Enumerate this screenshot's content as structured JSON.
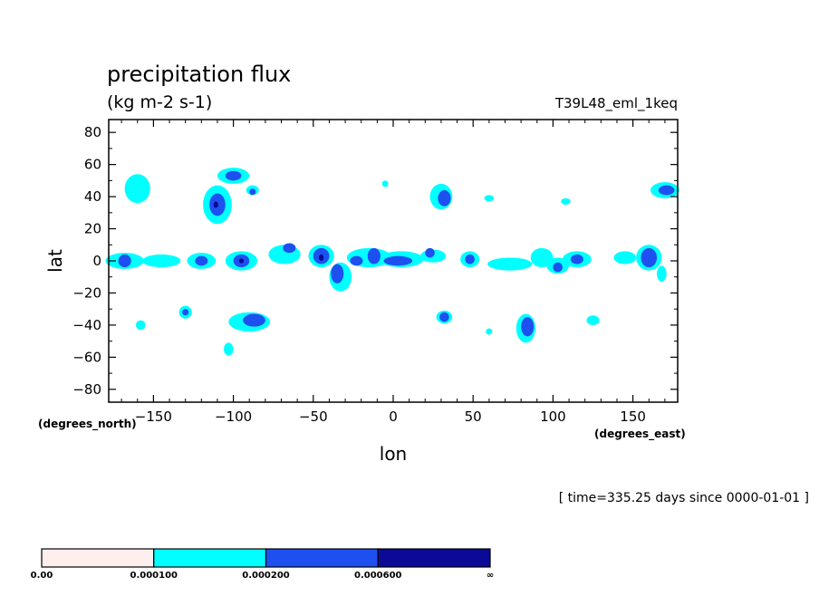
{
  "chart_data": {
    "type": "contour_map",
    "title": "precipitation flux",
    "units": "(kg m-2 s-1)",
    "run_label": "T39L48_eml_1keq",
    "time_label": "[ time=335.25 days since 0000-01-01 ]",
    "xlabel": "lon",
    "ylabel": "lat",
    "x_unit_label": "(degrees_east)",
    "y_unit_label": "(degrees_north)",
    "xlim": [
      -178,
      178
    ],
    "ylim": [
      -88,
      88
    ],
    "x_ticks": [
      -150,
      -100,
      -50,
      0,
      50,
      100,
      150
    ],
    "y_ticks": [
      80,
      60,
      40,
      20,
      0,
      -20,
      -40,
      -60,
      -80
    ],
    "x_tick_labels": [
      "−150",
      "−100",
      "−50",
      "0",
      "50",
      "100",
      "150"
    ],
    "y_tick_labels": [
      "80",
      "60",
      "40",
      "20",
      "0",
      "−20",
      "−40",
      "−60",
      "−80"
    ],
    "levels": [
      0.0,
      0.0001,
      0.0002,
      0.0006
    ],
    "colorbar": {
      "labels": [
        "0.00",
        "0.000100",
        "0.000200",
        "0.000600",
        "∞"
      ],
      "colors": [
        "#ffeeee",
        "#00ffff",
        "#1e50f0",
        "#0a0a96"
      ]
    },
    "regions": [
      {
        "level": 1,
        "lon": -160,
        "lat": 45,
        "dlon": 8,
        "dlat": 9
      },
      {
        "level": 1,
        "lon": -110,
        "lat": 35,
        "dlon": 9,
        "dlat": 12
      },
      {
        "level": 2,
        "lon": -110,
        "lat": 35,
        "dlon": 5,
        "dlat": 7
      },
      {
        "level": 3,
        "lon": -111,
        "lat": 35,
        "dlon": 1.5,
        "dlat": 2
      },
      {
        "level": 1,
        "lon": -100,
        "lat": 53,
        "dlon": 10,
        "dlat": 5
      },
      {
        "level": 2,
        "lon": -100,
        "lat": 53,
        "dlon": 5,
        "dlat": 3
      },
      {
        "level": 1,
        "lon": -88,
        "lat": 44,
        "dlon": 4,
        "dlat": 3
      },
      {
        "level": 2,
        "lon": -88,
        "lat": 43,
        "dlon": 2,
        "dlat": 2
      },
      {
        "level": 1,
        "lon": -168,
        "lat": 0,
        "dlon": 12,
        "dlat": 5
      },
      {
        "level": 2,
        "lon": -168,
        "lat": 0,
        "dlon": 4,
        "dlat": 4
      },
      {
        "level": 1,
        "lon": -145,
        "lat": 0,
        "dlon": 12,
        "dlat": 4
      },
      {
        "level": 1,
        "lon": -120,
        "lat": 0,
        "dlon": 9,
        "dlat": 5
      },
      {
        "level": 2,
        "lon": -120,
        "lat": 0,
        "dlon": 4,
        "dlat": 3
      },
      {
        "level": 1,
        "lon": -95,
        "lat": 0,
        "dlon": 10,
        "dlat": 6
      },
      {
        "level": 2,
        "lon": -95,
        "lat": 0,
        "dlon": 5,
        "dlat": 4
      },
      {
        "level": 3,
        "lon": -95,
        "lat": 0,
        "dlon": 1.5,
        "dlat": 1.5
      },
      {
        "level": 1,
        "lon": -68,
        "lat": 4,
        "dlon": 10,
        "dlat": 6
      },
      {
        "level": 2,
        "lon": -65,
        "lat": 8,
        "dlon": 4,
        "dlat": 3
      },
      {
        "level": 1,
        "lon": -45,
        "lat": 3,
        "dlon": 8,
        "dlat": 7
      },
      {
        "level": 2,
        "lon": -45,
        "lat": 3,
        "dlon": 5,
        "dlat": 5
      },
      {
        "level": 3,
        "lon": -45,
        "lat": 2,
        "dlon": 1.5,
        "dlat": 2
      },
      {
        "level": 1,
        "lon": -33,
        "lat": -10,
        "dlon": 7,
        "dlat": 9
      },
      {
        "level": 2,
        "lon": -35,
        "lat": -8,
        "dlon": 4,
        "dlat": 6
      },
      {
        "level": 1,
        "lon": -15,
        "lat": 2,
        "dlon": 14,
        "dlat": 6
      },
      {
        "level": 2,
        "lon": -23,
        "lat": 0,
        "dlon": 4,
        "dlat": 3
      },
      {
        "level": 2,
        "lon": -12,
        "lat": 3,
        "dlon": 4,
        "dlat": 5
      },
      {
        "level": 1,
        "lon": 5,
        "lat": 1,
        "dlon": 14,
        "dlat": 5
      },
      {
        "level": 2,
        "lon": 3,
        "lat": 0,
        "dlon": 9,
        "dlat": 3
      },
      {
        "level": 1,
        "lon": 25,
        "lat": 3,
        "dlon": 8,
        "dlat": 4
      },
      {
        "level": 2,
        "lon": 23,
        "lat": 5,
        "dlon": 3,
        "dlat": 3
      },
      {
        "level": 1,
        "lon": 48,
        "lat": 1,
        "dlon": 6,
        "dlat": 5
      },
      {
        "level": 2,
        "lon": 48,
        "lat": 1,
        "dlon": 3,
        "dlat": 3
      },
      {
        "level": 1,
        "lon": 73,
        "lat": -2,
        "dlon": 14,
        "dlat": 4
      },
      {
        "level": 1,
        "lon": 93,
        "lat": 2,
        "dlon": 7,
        "dlat": 6
      },
      {
        "level": 1,
        "lon": 103,
        "lat": -3,
        "dlon": 7,
        "dlat": 5
      },
      {
        "level": 2,
        "lon": 103,
        "lat": -4,
        "dlon": 3,
        "dlat": 3
      },
      {
        "level": 1,
        "lon": 115,
        "lat": 1,
        "dlon": 9,
        "dlat": 5
      },
      {
        "level": 2,
        "lon": 115,
        "lat": 1,
        "dlon": 4,
        "dlat": 3
      },
      {
        "level": 1,
        "lon": 145,
        "lat": 2,
        "dlon": 7,
        "dlat": 4
      },
      {
        "level": 1,
        "lon": 160,
        "lat": 2,
        "dlon": 8,
        "dlat": 8
      },
      {
        "level": 2,
        "lon": 160,
        "lat": 2,
        "dlon": 5,
        "dlat": 6
      },
      {
        "level": 1,
        "lon": 168,
        "lat": -8,
        "dlon": 3,
        "dlat": 5
      },
      {
        "level": 1,
        "lon": 30,
        "lat": 40,
        "dlon": 7,
        "dlat": 8
      },
      {
        "level": 2,
        "lon": 32,
        "lat": 39,
        "dlon": 4,
        "dlat": 5
      },
      {
        "level": 1,
        "lon": 170,
        "lat": 44,
        "dlon": 9,
        "dlat": 5
      },
      {
        "level": 2,
        "lon": 171,
        "lat": 44,
        "dlon": 5,
        "dlat": 3
      },
      {
        "level": 1,
        "lon": 60,
        "lat": 39,
        "dlon": 3,
        "dlat": 2
      },
      {
        "level": 1,
        "lon": 108,
        "lat": 37,
        "dlon": 3,
        "dlat": 2
      },
      {
        "level": 1,
        "lon": -5,
        "lat": 48,
        "dlon": 2,
        "dlat": 2
      },
      {
        "level": 1,
        "lon": -130,
        "lat": -32,
        "dlon": 4,
        "dlat": 4
      },
      {
        "level": 2,
        "lon": -130,
        "lat": -32,
        "dlon": 2,
        "dlat": 2
      },
      {
        "level": 1,
        "lon": -90,
        "lat": -38,
        "dlon": 13,
        "dlat": 6
      },
      {
        "level": 2,
        "lon": -87,
        "lat": -37,
        "dlon": 7,
        "dlat": 4
      },
      {
        "level": 1,
        "lon": -103,
        "lat": -55,
        "dlon": 3,
        "dlat": 4
      },
      {
        "level": 1,
        "lon": -158,
        "lat": -40,
        "dlon": 3,
        "dlat": 3
      },
      {
        "level": 1,
        "lon": 32,
        "lat": -35,
        "dlon": 5,
        "dlat": 4
      },
      {
        "level": 2,
        "lon": 32,
        "lat": -35,
        "dlon": 3,
        "dlat": 3
      },
      {
        "level": 1,
        "lon": 83,
        "lat": -42,
        "dlon": 6,
        "dlat": 9
      },
      {
        "level": 2,
        "lon": 84,
        "lat": -41,
        "dlon": 4,
        "dlat": 6
      },
      {
        "level": 1,
        "lon": 125,
        "lat": -37,
        "dlon": 4,
        "dlat": 3
      },
      {
        "level": 1,
        "lon": 60,
        "lat": -44,
        "dlon": 2,
        "dlat": 2
      }
    ]
  }
}
